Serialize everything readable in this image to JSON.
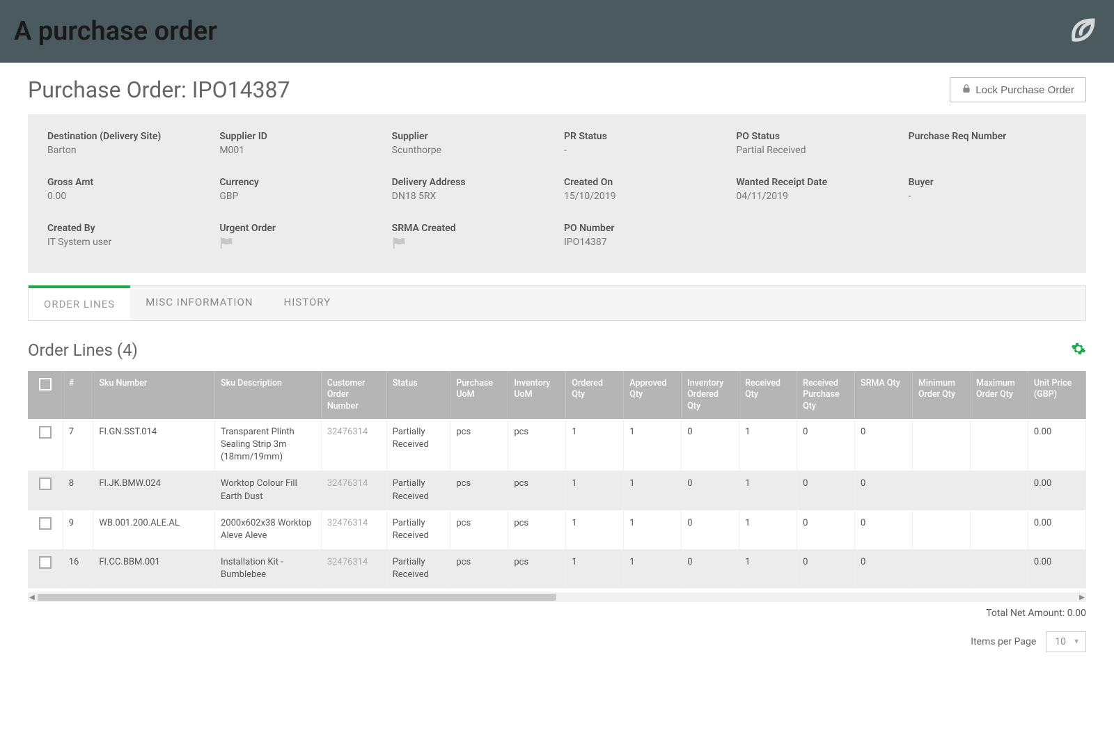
{
  "banner": {
    "title": "A purchase order"
  },
  "header": {
    "title_prefix": "Purchase Order: ",
    "po_number": "IPO14387",
    "lock_button": "Lock Purchase Order"
  },
  "info": {
    "rows": [
      [
        {
          "label": "Destination (Delivery Site)",
          "value": "Barton"
        },
        {
          "label": "Supplier ID",
          "value": "M001"
        },
        {
          "label": "Supplier",
          "value": "Scunthorpe"
        },
        {
          "label": "PR Status",
          "value": "-"
        },
        {
          "label": "PO Status",
          "value": "Partial Received"
        },
        {
          "label": "Purchase Req Number",
          "value": ""
        }
      ],
      [
        {
          "label": "Gross Amt",
          "value": "0.00"
        },
        {
          "label": "Currency",
          "value": "GBP"
        },
        {
          "label": "Delivery Address",
          "value": "DN18 5RX"
        },
        {
          "label": "Created On",
          "value": "15/10/2019"
        },
        {
          "label": "Wanted Receipt Date",
          "value": "04/11/2019"
        },
        {
          "label": "Buyer",
          "value": "-"
        }
      ],
      [
        {
          "label": "Created By",
          "value": "IT System user"
        },
        {
          "label": "Urgent Order",
          "value": "",
          "flag": true
        },
        {
          "label": "SRMA Created",
          "value": "",
          "flag": true
        },
        {
          "label": "PO Number",
          "value": "IPO14387"
        },
        {
          "label": "",
          "value": ""
        },
        {
          "label": "",
          "value": ""
        }
      ]
    ]
  },
  "tabs": [
    {
      "label": "ORDER LINES",
      "active": true
    },
    {
      "label": "MISC INFORMATION",
      "active": false
    },
    {
      "label": "HISTORY",
      "active": false
    }
  ],
  "section": {
    "title": "Order Lines (4)"
  },
  "table": {
    "columns": [
      "",
      "#",
      "Sku Number",
      "Sku Description",
      "Customer Order Number",
      "Status",
      "Purchase UoM",
      "Inventory UoM",
      "Ordered Qty",
      "Approved Qty",
      "Inventory Ordered Qty",
      "Received Qty",
      "Received Purchase Qty",
      "SRMA Qty",
      "Minimum Order Qty",
      "Maximum Order Qty",
      "Unit Price (GBP)"
    ],
    "rows": [
      {
        "num": "7",
        "sku": "FI.GN.SST.014",
        "desc": "Transparent Plinth Sealing Strip 3m (18mm/19mm)",
        "co": "32476314",
        "status": "Partially Received",
        "puom": "pcs",
        "iuom": "pcs",
        "oqty": "1",
        "aqty": "1",
        "ioqty": "0",
        "rqty": "1",
        "rpqty": "0",
        "srma": "0",
        "min": "",
        "max": "",
        "price": "0.00"
      },
      {
        "num": "8",
        "sku": "FI.JK.BMW.024",
        "desc": "Worktop Colour Fill Earth Dust",
        "co": "32476314",
        "status": "Partially Received",
        "puom": "pcs",
        "iuom": "pcs",
        "oqty": "1",
        "aqty": "1",
        "ioqty": "0",
        "rqty": "1",
        "rpqty": "0",
        "srma": "0",
        "min": "",
        "max": "",
        "price": "0.00"
      },
      {
        "num": "9",
        "sku": "WB.001.200.ALE.AL",
        "desc": "2000x602x38 Worktop Aleve Aleve",
        "co": "32476314",
        "status": "Partially Received",
        "puom": "pcs",
        "iuom": "pcs",
        "oqty": "1",
        "aqty": "1",
        "ioqty": "0",
        "rqty": "1",
        "rpqty": "0",
        "srma": "0",
        "min": "",
        "max": "",
        "price": "0.00"
      },
      {
        "num": "16",
        "sku": "FI.CC.BBM.001",
        "desc": "Installation Kit - Bumblebee",
        "co": "32476314",
        "status": "Partially Received",
        "puom": "pcs",
        "iuom": "pcs",
        "oqty": "1",
        "aqty": "1",
        "ioqty": "0",
        "rqty": "1",
        "rpqty": "0",
        "srma": "0",
        "min": "",
        "max": "",
        "price": "0.00"
      }
    ]
  },
  "footer": {
    "total_label": "Total Net Amount: ",
    "total_value": "0.00",
    "items_label": "Items per Page",
    "items_value": "10"
  },
  "colors": {
    "banner_bg": "#4a5a5e",
    "accent": "#1fa94b",
    "panel_bg": "#ececec",
    "th_bg": "#b5b5b5"
  }
}
